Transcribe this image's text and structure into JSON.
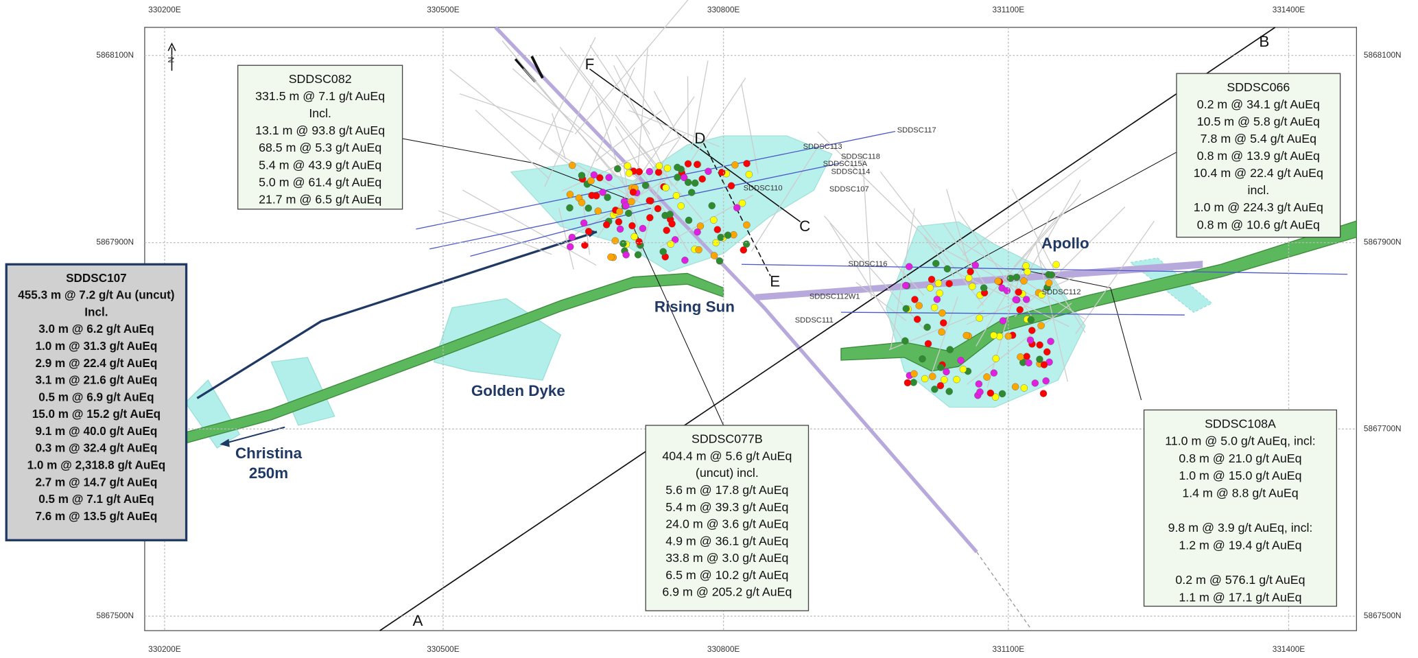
{
  "map": {
    "eastings": [
      "330200E",
      "330500E",
      "330800E",
      "331100E",
      "331400E"
    ],
    "northings": [
      "5868100N",
      "5867900N",
      "5867700N",
      "5867500N"
    ],
    "north_label": "N",
    "places": [
      [
        "Rising Sun"
      ],
      [
        "Golden Dyke"
      ],
      [
        "Apollo"
      ],
      [
        "Christina",
        "250m"
      ]
    ],
    "sections": [
      "A",
      "B",
      "C",
      "D",
      "E",
      "F"
    ],
    "holes": [
      "SDDSC117",
      "SDDSC113",
      "SDDSC118",
      "SDDSC115A",
      "SDDSC114",
      "SDDSC110",
      "SDDSC107",
      "SDDSC116",
      "SDDSC112W1",
      "SDDSC112",
      "SDDSC111"
    ],
    "callouts": [
      {
        "title": "SDDSC082",
        "groups": [
          [
            "331.5 m @ 7.1 g/t AuEq",
            "Incl.",
            "13.1 m @ 93.8 g/t AuEq",
            "68.5 m @ 5.3 g/t AuEq",
            "5.4 m @ 43.9 g/t AuEq",
            "5.0 m @ 61.4 g/t AuEq",
            "21.7 m @ 6.5 g/t AuEq"
          ]
        ]
      },
      {
        "title": "SDDSC066",
        "groups": [
          [
            "0.2 m @ 34.1 g/t AuEq",
            "10.5 m @ 5.8 g/t AuEq",
            "7.8 m @ 5.4 g/t AuEq",
            "0.8 m @ 13.9 g/t AuEq",
            "10.4 m @ 22.4 g/t AuEq",
            "incl.",
            "1.0 m @ 224.3 g/t AuEq",
            "0.8 m @ 10.6 g/t AuEq"
          ]
        ]
      },
      {
        "title": "SDDSC107",
        "groups": [
          [
            "455.3 m @ 7.2 g/t Au (uncut)",
            "Incl.",
            "3.0 m @ 6.2 g/t  AuEq",
            "1.0 m @ 31.3 g/t AuEq",
            "2.9 m @ 22.4 g/t AuEq",
            "3.1 m @ 21.6 g/t AuEq",
            "0.5 m @ 6.9 g/t AuEq",
            "15.0 m @ 15.2 g/t AuEq",
            "9.1 m @ 40.0 g/t AuEq",
            "0.3 m @ 32.4 g/t AuEq",
            "1.0 m @ 2,318.8 g/t AuEq",
            "2.7 m @ 14.7 g/t AuEq",
            "0.5 m @ 7.1 g/t AuEq",
            "7.6 m @ 13.5 g/t AuEq"
          ]
        ]
      },
      {
        "title": "SDDSC077B",
        "groups": [
          [
            "404.4 m @ 5.6 g/t AuEq",
            "(uncut) incl.",
            "5.6 m @ 17.8 g/t AuEq",
            "5.4 m @ 39.3 g/t AuEq",
            "24.0 m @ 3.6 g/t AuEq",
            "4.9 m @ 36.1 g/t AuEq",
            "33.8 m @ 3.0 g/t AuEq",
            "6.5 m @ 10.2 g/t AuEq",
            "6.9 m @ 205.2 g/t AuEq"
          ]
        ]
      },
      {
        "title": "SDDSC108A",
        "groups": [
          [
            "11.0 m @ 5.0 g/t AuEq, incl:",
            "0.8 m @ 21.0 g/t AuEq",
            "1.0 m @ 15.0 g/t AuEq",
            "1.4 m @ 8.8 g/t AuEq"
          ],
          [
            "9.8 m @ 3.9 g/t AuEq, incl:",
            "1.2 m @ 19.4 g/t AuEq"
          ],
          [
            "0.2 m @ 576.1 g/t AuEq",
            "1.1 m @ 17.1 g/t AuEq"
          ]
        ]
      }
    ]
  }
}
